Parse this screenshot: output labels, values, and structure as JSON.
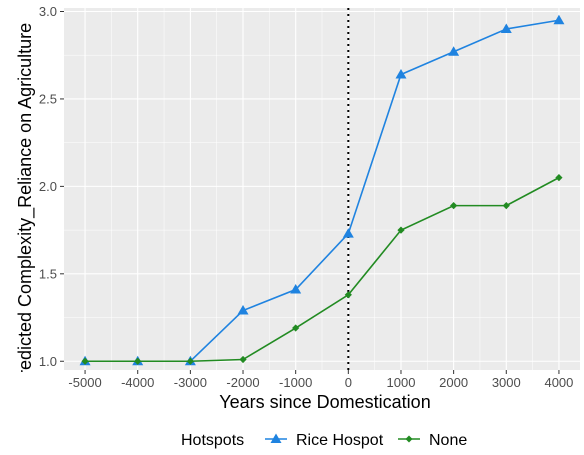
{
  "chart_data": {
    "type": "line",
    "xlabel": "Years since Domestication",
    "ylabel": "Predicted Complexity_Reliance on Agriculture",
    "x": [
      -5000,
      -4000,
      -3000,
      -2000,
      -1000,
      0,
      1000,
      2000,
      3000,
      4000
    ],
    "xticks": [
      "-5000",
      "-4000",
      "-3000",
      "-2000",
      "-1000",
      "0",
      "1000",
      "2000",
      "3000",
      "4000"
    ],
    "yticks": [
      "1.0",
      "1.5",
      "2.0",
      "2.5",
      "3.0"
    ],
    "ytick_values": [
      1.0,
      1.5,
      2.0,
      2.5,
      3.0
    ],
    "xlim": [
      -5400,
      4400
    ],
    "ylim": [
      0.95,
      3.02
    ],
    "grid": true,
    "reference_line": {
      "x": 0,
      "style": "dotted",
      "color": "#000000"
    },
    "legend": {
      "title": "Hotspots",
      "position": "bottom"
    },
    "series": [
      {
        "name": "Rice Hospot",
        "color": "#1f83e0",
        "marker": "triangle",
        "values": [
          1.0,
          1.0,
          1.0,
          1.29,
          1.41,
          1.73,
          2.64,
          2.77,
          2.9,
          2.95
        ]
      },
      {
        "name": "None",
        "color": "#228b22",
        "marker": "diamond",
        "values": [
          1.0,
          1.0,
          1.0,
          1.01,
          1.19,
          1.38,
          1.75,
          1.89,
          1.89,
          2.05
        ]
      }
    ]
  }
}
